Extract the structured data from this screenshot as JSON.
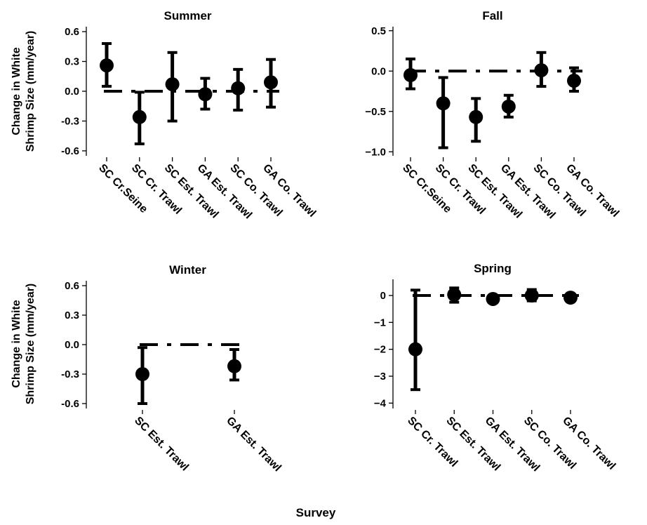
{
  "figure": {
    "xlabel": "Survey",
    "ylabel_line1": "Change in White",
    "ylabel_line2": "Shrimp Size (mm/year)"
  },
  "chart_data": [
    {
      "type": "scatter",
      "title": "Summer",
      "ylim": [
        -0.65,
        0.65
      ],
      "yticks": [
        -0.6,
        -0.3,
        0.0,
        0.3,
        0.6
      ],
      "ytick_labels": [
        "-0.6",
        "-0.3",
        "0.0",
        "0.3",
        "0.6"
      ],
      "reference_line": 0,
      "categories": [
        "SC Cr.Seine",
        "SC Cr. Trawl",
        "SC Est. Trawl",
        "GA Est. Trawl",
        "SC Co. Trawl",
        "GA Co. Trawl"
      ],
      "values": [
        0.26,
        -0.26,
        0.07,
        -0.03,
        0.03,
        0.09
      ],
      "lower": [
        0.05,
        -0.53,
        -0.3,
        -0.18,
        -0.19,
        -0.16
      ],
      "upper": [
        0.48,
        -0.01,
        0.39,
        0.13,
        0.22,
        0.32
      ]
    },
    {
      "type": "scatter",
      "title": "Fall",
      "ylim": [
        -1.05,
        0.55
      ],
      "yticks": [
        -1.0,
        -0.5,
        0.0,
        0.5
      ],
      "ytick_labels": [
        "−1.0",
        "−0.5",
        "0.0",
        "0.5"
      ],
      "reference_line": 0,
      "categories": [
        "SC Cr.Seine",
        "SC Cr. Trawl",
        "SC Est. Trawl",
        "GA Est. Trawl",
        "SC Co. Trawl",
        "GA Co. Trawl"
      ],
      "values": [
        -0.05,
        -0.4,
        -0.57,
        -0.44,
        0.01,
        -0.12
      ],
      "lower": [
        -0.22,
        -0.95,
        -0.87,
        -0.57,
        -0.19,
        -0.25
      ],
      "upper": [
        0.15,
        -0.08,
        -0.34,
        -0.3,
        0.23,
        0.04
      ]
    },
    {
      "type": "scatter",
      "title": "Winter",
      "ylim": [
        -0.65,
        0.65
      ],
      "yticks": [
        -0.6,
        -0.3,
        0.0,
        0.3,
        0.6
      ],
      "ytick_labels": [
        "-0.6",
        "-0.3",
        "0.0",
        "0.3",
        "0.6"
      ],
      "reference_line": 0,
      "categories": [
        "SC Est. Trawl",
        "GA Est. Trawl"
      ],
      "values": [
        -0.3,
        -0.22
      ],
      "lower": [
        -0.6,
        -0.36
      ],
      "upper": [
        -0.03,
        -0.05
      ]
    },
    {
      "type": "scatter",
      "title": "Spring",
      "ylim": [
        -4.2,
        0.6
      ],
      "yticks": [
        -4,
        -3,
        -2,
        -1,
        0
      ],
      "ytick_labels": [
        "−4",
        "−3",
        "−2",
        "−1",
        "0"
      ],
      "reference_line": 0,
      "categories": [
        "SC Cr. Trawl",
        "SC Est. Trawl",
        "GA Est. Trawl",
        "SC Co. Trawl",
        "GA Co. Trawl"
      ],
      "values": [
        -2.0,
        0.03,
        -0.13,
        0.0,
        -0.08
      ],
      "lower": [
        -3.5,
        -0.25,
        -0.2,
        -0.2,
        -0.15
      ],
      "upper": [
        0.2,
        0.28,
        -0.06,
        0.22,
        0.0
      ]
    }
  ]
}
